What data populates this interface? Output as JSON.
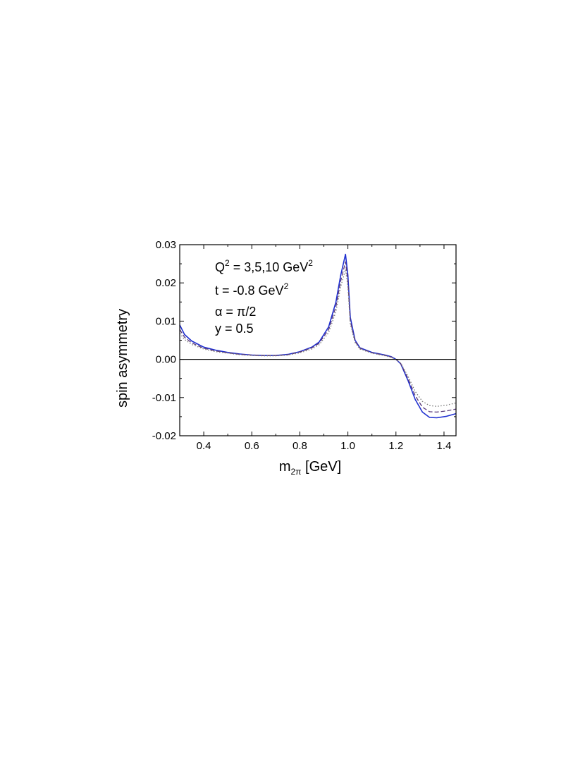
{
  "chart_data": {
    "type": "line",
    "title": "",
    "xlabel": "m",
    "xlabel_sub": "2π",
    "xlabel_unit": " [GeV]",
    "ylabel": "spin asymmetry",
    "xlim": [
      0.3,
      1.45
    ],
    "ylim": [
      -0.02,
      0.03
    ],
    "xticks": [
      0.4,
      0.6,
      0.8,
      1.0,
      1.2,
      1.4
    ],
    "xtick_labels": [
      "0.4",
      "0.6",
      "0.8",
      "1.0",
      "1.2",
      "1.4"
    ],
    "yticks": [
      -0.02,
      -0.01,
      0.0,
      0.01,
      0.02,
      0.03
    ],
    "ytick_labels": [
      "-0.02",
      "-0.01",
      "0.00",
      "0.01",
      "0.02",
      "0.03"
    ],
    "grid": false,
    "reference_line_y": 0.0,
    "annotations": [
      {
        "base": "Q",
        "sup": "2",
        "rest": " = 3,5,10 GeV",
        "sup2": "2"
      },
      {
        "base": "t = -0.8 GeV",
        "sup": "2",
        "rest": "",
        "sup2": ""
      },
      {
        "base": "α = π/2",
        "sup": "",
        "rest": "",
        "sup2": ""
      },
      {
        "base": "y = 0.5",
        "sup": "",
        "rest": "",
        "sup2": ""
      }
    ],
    "series": [
      {
        "style": "solid",
        "color": "#1f2fd0",
        "points": [
          [
            0.3,
            0.009
          ],
          [
            0.32,
            0.0065
          ],
          [
            0.35,
            0.0048
          ],
          [
            0.4,
            0.0032
          ],
          [
            0.45,
            0.0024
          ],
          [
            0.5,
            0.0018
          ],
          [
            0.55,
            0.0014
          ],
          [
            0.6,
            0.0011
          ],
          [
            0.65,
            0.001
          ],
          [
            0.7,
            0.001
          ],
          [
            0.75,
            0.0013
          ],
          [
            0.8,
            0.002
          ],
          [
            0.85,
            0.0032
          ],
          [
            0.88,
            0.0045
          ],
          [
            0.92,
            0.0085
          ],
          [
            0.95,
            0.015
          ],
          [
            0.97,
            0.022
          ],
          [
            0.99,
            0.0275
          ],
          [
            1.0,
            0.022
          ],
          [
            1.01,
            0.011
          ],
          [
            1.03,
            0.005
          ],
          [
            1.05,
            0.003
          ],
          [
            1.1,
            0.0018
          ],
          [
            1.15,
            0.0012
          ],
          [
            1.18,
            0.0007
          ],
          [
            1.2,
            0.0
          ],
          [
            1.22,
            -0.0012
          ],
          [
            1.25,
            -0.0055
          ],
          [
            1.28,
            -0.0105
          ],
          [
            1.31,
            -0.0138
          ],
          [
            1.34,
            -0.0152
          ],
          [
            1.37,
            -0.0153
          ],
          [
            1.41,
            -0.0149
          ],
          [
            1.45,
            -0.0142
          ]
        ]
      },
      {
        "style": "dashed",
        "color": "#5a3a7a",
        "points": [
          [
            0.3,
            0.0078
          ],
          [
            0.32,
            0.0058
          ],
          [
            0.35,
            0.0043
          ],
          [
            0.4,
            0.0029
          ],
          [
            0.45,
            0.0022
          ],
          [
            0.5,
            0.0017
          ],
          [
            0.55,
            0.0013
          ],
          [
            0.6,
            0.0011
          ],
          [
            0.65,
            0.001
          ],
          [
            0.7,
            0.001
          ],
          [
            0.75,
            0.0012
          ],
          [
            0.8,
            0.0019
          ],
          [
            0.85,
            0.003
          ],
          [
            0.88,
            0.0042
          ],
          [
            0.92,
            0.0078
          ],
          [
            0.95,
            0.0138
          ],
          [
            0.97,
            0.0205
          ],
          [
            0.99,
            0.0255
          ],
          [
            1.0,
            0.0205
          ],
          [
            1.01,
            0.01
          ],
          [
            1.03,
            0.0047
          ],
          [
            1.05,
            0.0029
          ],
          [
            1.1,
            0.0017
          ],
          [
            1.15,
            0.0011
          ],
          [
            1.18,
            0.0006
          ],
          [
            1.2,
            0.0
          ],
          [
            1.22,
            -0.0011
          ],
          [
            1.25,
            -0.005
          ],
          [
            1.28,
            -0.0095
          ],
          [
            1.31,
            -0.0125
          ],
          [
            1.34,
            -0.0137
          ],
          [
            1.37,
            -0.0138
          ],
          [
            1.41,
            -0.0135
          ],
          [
            1.45,
            -0.013
          ]
        ]
      },
      {
        "style": "dotted",
        "color": "#7a7a7a",
        "points": [
          [
            0.3,
            0.0068
          ],
          [
            0.32,
            0.0052
          ],
          [
            0.35,
            0.0039
          ],
          [
            0.4,
            0.0027
          ],
          [
            0.45,
            0.002
          ],
          [
            0.5,
            0.0016
          ],
          [
            0.55,
            0.0012
          ],
          [
            0.6,
            0.001
          ],
          [
            0.65,
            0.0009
          ],
          [
            0.7,
            0.0009
          ],
          [
            0.75,
            0.0011
          ],
          [
            0.8,
            0.0017
          ],
          [
            0.85,
            0.0027
          ],
          [
            0.88,
            0.0038
          ],
          [
            0.92,
            0.007
          ],
          [
            0.95,
            0.0125
          ],
          [
            0.97,
            0.019
          ],
          [
            0.99,
            0.0235
          ],
          [
            1.0,
            0.019
          ],
          [
            1.01,
            0.0092
          ],
          [
            1.03,
            0.0044
          ],
          [
            1.05,
            0.0027
          ],
          [
            1.1,
            0.0016
          ],
          [
            1.15,
            0.001
          ],
          [
            1.18,
            0.0005
          ],
          [
            1.2,
            0.0
          ],
          [
            1.22,
            -0.001
          ],
          [
            1.25,
            -0.0044
          ],
          [
            1.28,
            -0.0084
          ],
          [
            1.31,
            -0.011
          ],
          [
            1.34,
            -0.0121
          ],
          [
            1.37,
            -0.0123
          ],
          [
            1.41,
            -0.012
          ],
          [
            1.45,
            -0.0114
          ]
        ]
      }
    ]
  }
}
